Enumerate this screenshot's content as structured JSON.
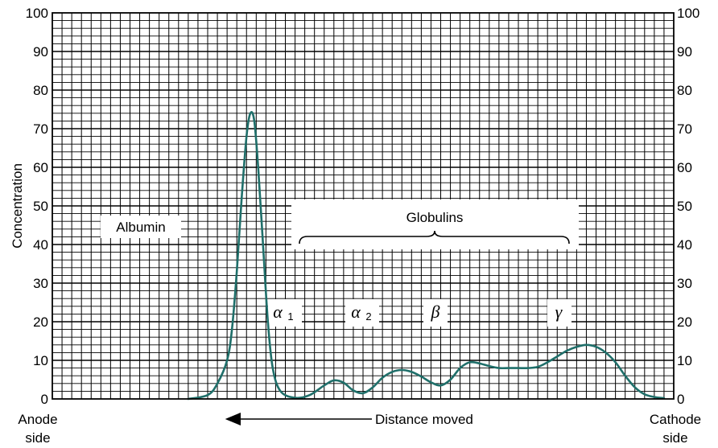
{
  "chart_data": {
    "type": "line",
    "title": "",
    "ylabel": "Concentration",
    "xlabel": "Distance moved",
    "ylim": [
      0,
      100
    ],
    "yticks": [
      0,
      10,
      20,
      30,
      40,
      50,
      60,
      70,
      80,
      90,
      100
    ],
    "x_left_label": "Anode side",
    "x_left_label_line1": "Anode",
    "x_left_label_line2": "side",
    "x_right_label": "Cathode side",
    "x_right_label_line1": "Cathode",
    "x_right_label_line2": "side",
    "grid": true,
    "line_color": "#1f6f6a",
    "series": [
      {
        "points": [
          [
            14,
            0
          ],
          [
            16,
            1
          ],
          [
            17,
            4
          ],
          [
            18,
            10
          ],
          [
            18.5,
            18
          ],
          [
            19,
            33
          ],
          [
            19.5,
            52
          ],
          [
            20,
            68
          ],
          [
            20.4,
            74
          ],
          [
            20.8,
            72
          ],
          [
            21.2,
            60
          ],
          [
            21.7,
            40
          ],
          [
            22.2,
            20
          ],
          [
            22.7,
            8
          ],
          [
            23.5,
            2
          ],
          [
            25,
            0.3
          ],
          [
            26.5,
            1
          ],
          [
            28,
            3.5
          ],
          [
            29,
            4.8
          ],
          [
            30,
            4.2
          ],
          [
            31,
            2.2
          ],
          [
            32,
            1.5
          ],
          [
            33,
            3
          ],
          [
            34,
            5.5
          ],
          [
            35,
            7
          ],
          [
            36,
            7.5
          ],
          [
            37,
            7
          ],
          [
            38,
            5.8
          ],
          [
            39,
            4.3
          ],
          [
            40,
            3.5
          ],
          [
            41,
            5
          ],
          [
            42,
            8
          ],
          [
            43,
            9.5
          ],
          [
            44,
            9.2
          ],
          [
            45,
            8.5
          ],
          [
            46,
            8
          ],
          [
            47,
            8
          ],
          [
            48,
            8
          ],
          [
            49,
            8
          ],
          [
            50,
            8.3
          ],
          [
            51,
            9.5
          ],
          [
            52,
            11
          ],
          [
            53,
            12.5
          ],
          [
            54,
            13.5
          ],
          [
            55,
            14
          ],
          [
            56,
            13.5
          ],
          [
            57,
            12
          ],
          [
            58,
            9.5
          ],
          [
            59,
            6
          ],
          [
            60,
            3
          ],
          [
            61,
            1.2
          ],
          [
            62,
            0.5
          ],
          [
            63,
            0.2
          ]
        ]
      }
    ],
    "annotations": [
      {
        "text": "Albumin",
        "x": 11.5,
        "y": 45
      },
      {
        "text": "Globulins",
        "x": 38.5,
        "y": 47
      },
      {
        "text": "α",
        "sub": "1",
        "x": 30,
        "y": 23
      },
      {
        "text": "α",
        "sub": "2",
        "x": 37,
        "y": 23
      },
      {
        "text": "β",
        "sub": "",
        "x": 43.5,
        "y": 23
      },
      {
        "text": "γ",
        "sub": "",
        "x": 55.5,
        "y": 23
      }
    ],
    "arrow_direction": "left"
  }
}
